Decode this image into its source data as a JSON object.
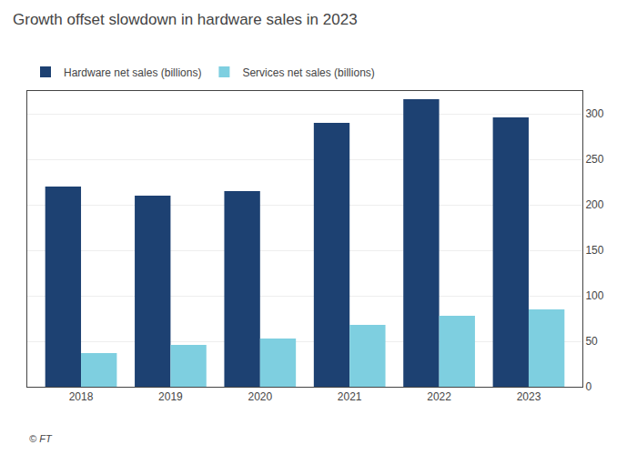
{
  "chart_data": {
    "type": "bar",
    "title": "Growth offset slowdown in hardware sales in 2023",
    "categories": [
      "2018",
      "2019",
      "2020",
      "2021",
      "2022",
      "2023"
    ],
    "series": [
      {
        "name": "Hardware net sales (billions)",
        "color": "#1d4172",
        "values": [
          220,
          210,
          215,
          290,
          316,
          296
        ]
      },
      {
        "name": "Services net sales (billions)",
        "color": "#7ecfe0",
        "values": [
          37,
          46,
          53,
          68,
          78,
          85
        ]
      }
    ],
    "ylim": [
      0,
      325
    ],
    "yticks": [
      0,
      50,
      100,
      150,
      200,
      250,
      300
    ],
    "grid": true,
    "legend": "upper left",
    "annotations": [
      "© FT"
    ]
  }
}
